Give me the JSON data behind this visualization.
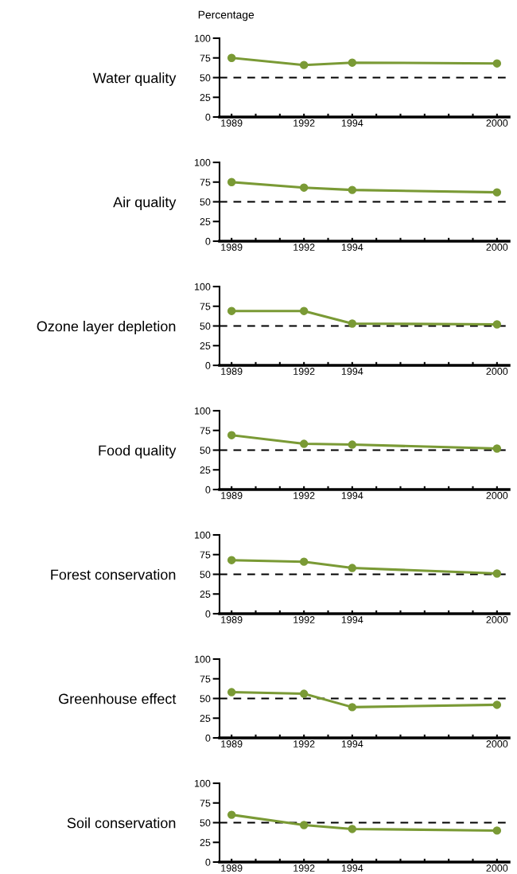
{
  "chart_data": [
    {
      "type": "line",
      "title": "Water quality",
      "ylabel": "Percentage",
      "x": [
        1989,
        1992,
        1994,
        2000
      ],
      "series": [
        {
          "color": "#7a9a35",
          "values": [
            75,
            66,
            69,
            68
          ]
        }
      ],
      "xlim": [
        1988.5,
        2000.5
      ],
      "xticks": [
        1989,
        {
          "value": 1990,
          "label": null
        },
        {
          "value": 1991,
          "label": null
        },
        1992,
        {
          "value": 1993,
          "label": null
        },
        1994,
        {
          "value": 1995,
          "label": null
        },
        {
          "value": 1996,
          "label": null
        },
        {
          "value": 1997,
          "label": null
        },
        {
          "value": 1998,
          "label": null
        },
        {
          "value": 1999,
          "label": null
        },
        2000
      ],
      "ylim": [
        0,
        100
      ],
      "yticks": [
        0,
        25,
        50,
        75,
        100
      ],
      "ref_lines": [
        {
          "axis": "y",
          "value": 50,
          "color": "#000000",
          "line_style": "dashed"
        }
      ],
      "marker": "circle",
      "line_style": "solid"
    },
    {
      "type": "line",
      "title": "Air quality",
      "x": [
        1989,
        1992,
        1994,
        2000
      ],
      "series": [
        {
          "color": "#7a9a35",
          "values": [
            75,
            68,
            65,
            62
          ]
        }
      ],
      "xlim": [
        1988.5,
        2000.5
      ],
      "xticks": [
        1989,
        {
          "value": 1990,
          "label": null
        },
        {
          "value": 1991,
          "label": null
        },
        1992,
        {
          "value": 1993,
          "label": null
        },
        1994,
        {
          "value": 1995,
          "label": null
        },
        {
          "value": 1996,
          "label": null
        },
        {
          "value": 1997,
          "label": null
        },
        {
          "value": 1998,
          "label": null
        },
        {
          "value": 1999,
          "label": null
        },
        2000
      ],
      "ylim": [
        0,
        100
      ],
      "yticks": [
        0,
        25,
        50,
        75,
        100
      ],
      "ref_lines": [
        {
          "axis": "y",
          "value": 50,
          "color": "#000000",
          "line_style": "dashed"
        }
      ],
      "marker": "circle",
      "line_style": "solid"
    },
    {
      "type": "line",
      "title": "Ozone layer depletion",
      "x": [
        1989,
        1992,
        1994,
        2000
      ],
      "series": [
        {
          "color": "#7a9a35",
          "values": [
            69,
            69,
            53,
            52
          ]
        }
      ],
      "xlim": [
        1988.5,
        2000.5
      ],
      "xticks": [
        1989,
        {
          "value": 1990,
          "label": null
        },
        {
          "value": 1991,
          "label": null
        },
        1992,
        {
          "value": 1993,
          "label": null
        },
        1994,
        {
          "value": 1995,
          "label": null
        },
        {
          "value": 1996,
          "label": null
        },
        {
          "value": 1997,
          "label": null
        },
        {
          "value": 1998,
          "label": null
        },
        {
          "value": 1999,
          "label": null
        },
        2000
      ],
      "ylim": [
        0,
        100
      ],
      "yticks": [
        0,
        25,
        50,
        75,
        100
      ],
      "ref_lines": [
        {
          "axis": "y",
          "value": 50,
          "color": "#000000",
          "line_style": "dashed"
        }
      ],
      "marker": "circle",
      "line_style": "solid"
    },
    {
      "type": "line",
      "title": "Food quality",
      "x": [
        1989,
        1992,
        1994,
        2000
      ],
      "series": [
        {
          "color": "#7a9a35",
          "values": [
            69,
            58,
            57,
            52
          ]
        }
      ],
      "xlim": [
        1988.5,
        2000.5
      ],
      "xticks": [
        1989,
        {
          "value": 1990,
          "label": null
        },
        {
          "value": 1991,
          "label": null
        },
        1992,
        {
          "value": 1993,
          "label": null
        },
        1994,
        {
          "value": 1995,
          "label": null
        },
        {
          "value": 1996,
          "label": null
        },
        {
          "value": 1997,
          "label": null
        },
        {
          "value": 1998,
          "label": null
        },
        {
          "value": 1999,
          "label": null
        },
        2000
      ],
      "ylim": [
        0,
        100
      ],
      "yticks": [
        0,
        25,
        50,
        75,
        100
      ],
      "ref_lines": [
        {
          "axis": "y",
          "value": 50,
          "color": "#000000",
          "line_style": "dashed"
        }
      ],
      "marker": "circle",
      "line_style": "solid"
    },
    {
      "type": "line",
      "title": "Forest conservation",
      "x": [
        1989,
        1992,
        1994,
        2000
      ],
      "series": [
        {
          "color": "#7a9a35",
          "values": [
            68,
            66,
            58,
            51
          ]
        }
      ],
      "xlim": [
        1988.5,
        2000.5
      ],
      "xticks": [
        1989,
        {
          "value": 1990,
          "label": null
        },
        {
          "value": 1991,
          "label": null
        },
        1992,
        {
          "value": 1993,
          "label": null
        },
        1994,
        {
          "value": 1995,
          "label": null
        },
        {
          "value": 1996,
          "label": null
        },
        {
          "value": 1997,
          "label": null
        },
        {
          "value": 1998,
          "label": null
        },
        {
          "value": 1999,
          "label": null
        },
        2000
      ],
      "ylim": [
        0,
        100
      ],
      "yticks": [
        0,
        25,
        50,
        75,
        100
      ],
      "ref_lines": [
        {
          "axis": "y",
          "value": 50,
          "color": "#000000",
          "line_style": "dashed"
        }
      ],
      "marker": "circle",
      "line_style": "solid"
    },
    {
      "type": "line",
      "title": "Greenhouse effect",
      "x": [
        1989,
        1992,
        1994,
        2000
      ],
      "series": [
        {
          "color": "#7a9a35",
          "values": [
            58,
            56,
            39,
            42
          ]
        }
      ],
      "xlim": [
        1988.5,
        2000.5
      ],
      "xticks": [
        1989,
        {
          "value": 1990,
          "label": null
        },
        {
          "value": 1991,
          "label": null
        },
        1992,
        {
          "value": 1993,
          "label": null
        },
        1994,
        {
          "value": 1995,
          "label": null
        },
        {
          "value": 1996,
          "label": null
        },
        {
          "value": 1997,
          "label": null
        },
        {
          "value": 1998,
          "label": null
        },
        {
          "value": 1999,
          "label": null
        },
        2000
      ],
      "ylim": [
        0,
        100
      ],
      "yticks": [
        0,
        25,
        50,
        75,
        100
      ],
      "ref_lines": [
        {
          "axis": "y",
          "value": 50,
          "color": "#000000",
          "line_style": "dashed"
        }
      ],
      "marker": "circle",
      "line_style": "solid"
    },
    {
      "type": "line",
      "title": "Soil conservation",
      "x": [
        1989,
        1992,
        1994,
        2000
      ],
      "series": [
        {
          "color": "#7a9a35",
          "values": [
            60,
            47,
            42,
            40
          ]
        }
      ],
      "xlim": [
        1988.5,
        2000.5
      ],
      "xticks": [
        1989,
        {
          "value": 1990,
          "label": null
        },
        {
          "value": 1991,
          "label": null
        },
        1992,
        {
          "value": 1993,
          "label": null
        },
        1994,
        {
          "value": 1995,
          "label": null
        },
        {
          "value": 1996,
          "label": null
        },
        {
          "value": 1997,
          "label": null
        },
        {
          "value": 1998,
          "label": null
        },
        {
          "value": 1999,
          "label": null
        },
        2000
      ],
      "ylim": [
        0,
        100
      ],
      "yticks": [
        0,
        25,
        50,
        75,
        100
      ],
      "ref_lines": [
        {
          "axis": "y",
          "value": 50,
          "color": "#000000",
          "line_style": "dashed"
        }
      ],
      "marker": "circle",
      "line_style": "solid"
    }
  ]
}
